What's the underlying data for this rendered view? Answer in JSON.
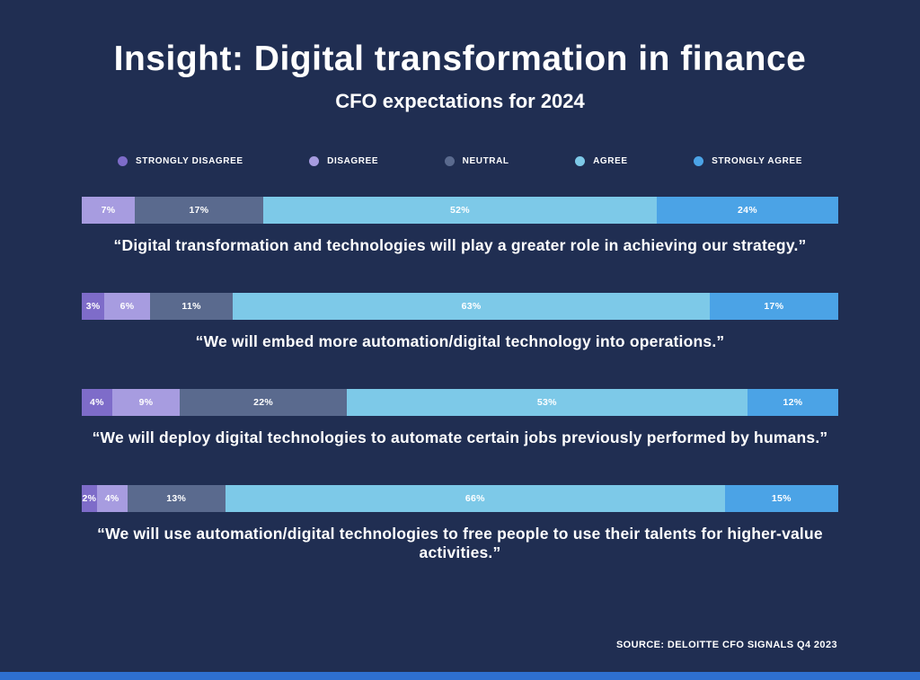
{
  "title": "Insight: Digital transformation in finance",
  "subtitle": "CFO expectations for 2024",
  "source": "SOURCE: DELOITTE CFO SIGNALS Q4 2023",
  "colors": {
    "background": "#202e52",
    "strongly_disagree": "#7e6cc9",
    "disagree": "#a79ce0",
    "neutral": "#5a6a8e",
    "agree": "#7dc9e8",
    "strongly_agree": "#4ba3e6",
    "footer_bar": "#2e6fd0",
    "text": "#ffffff"
  },
  "legend": {
    "items": [
      {
        "label": "STRONGLY DISAGREE",
        "color_key": "strongly_disagree"
      },
      {
        "label": "DISAGREE",
        "color_key": "disagree"
      },
      {
        "label": "NEUTRAL",
        "color_key": "neutral"
      },
      {
        "label": "AGREE",
        "color_key": "agree"
      },
      {
        "label": "STRONGLY AGREE",
        "color_key": "strongly_agree"
      }
    ]
  },
  "chart_data": {
    "type": "bar",
    "stacked": true,
    "orientation": "horizontal",
    "unit": "%",
    "xlim": [
      0,
      100
    ],
    "categories": [
      "Strongly disagree",
      "Disagree",
      "Neutral",
      "Agree",
      "Strongly agree"
    ],
    "rows": [
      {
        "caption": "“Digital transformation and technologies will play a greater role in achieving our strategy.”",
        "segments": [
          {
            "category": "disagree",
            "value": 7
          },
          {
            "category": "neutral",
            "value": 17
          },
          {
            "category": "agree",
            "value": 52
          },
          {
            "category": "strongly_agree",
            "value": 24
          }
        ]
      },
      {
        "caption": "“We will embed more automation/digital technology into operations.”",
        "segments": [
          {
            "category": "strongly_disagree",
            "value": 3
          },
          {
            "category": "disagree",
            "value": 6
          },
          {
            "category": "neutral",
            "value": 11
          },
          {
            "category": "agree",
            "value": 63
          },
          {
            "category": "strongly_agree",
            "value": 17
          }
        ]
      },
      {
        "caption": "“We will deploy digital technologies to automate certain jobs previously performed by humans.”",
        "segments": [
          {
            "category": "strongly_disagree",
            "value": 4
          },
          {
            "category": "disagree",
            "value": 9
          },
          {
            "category": "neutral",
            "value": 22
          },
          {
            "category": "agree",
            "value": 53
          },
          {
            "category": "strongly_agree",
            "value": 12
          }
        ]
      },
      {
        "caption": "“We will use automation/digital technologies to free people to use their talents for higher-value activities.”",
        "segments": [
          {
            "category": "strongly_disagree",
            "value": 2
          },
          {
            "category": "disagree",
            "value": 4
          },
          {
            "category": "neutral",
            "value": 13
          },
          {
            "category": "agree",
            "value": 66
          },
          {
            "category": "strongly_agree",
            "value": 15
          }
        ]
      }
    ]
  }
}
